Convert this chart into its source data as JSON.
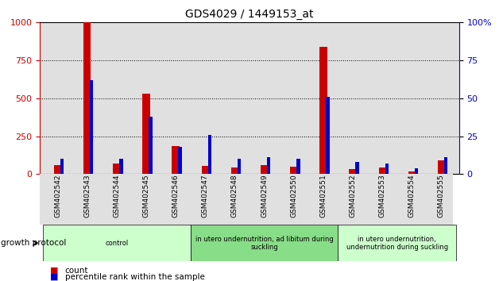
{
  "title": "GDS4029 / 1449153_at",
  "samples": [
    "GSM402542",
    "GSM402543",
    "GSM402544",
    "GSM402545",
    "GSM402546",
    "GSM402547",
    "GSM402548",
    "GSM402549",
    "GSM402550",
    "GSM402551",
    "GSM402552",
    "GSM402553",
    "GSM402554",
    "GSM402555"
  ],
  "counts": [
    60,
    1000,
    70,
    530,
    185,
    55,
    45,
    60,
    50,
    840,
    35,
    45,
    20,
    90
  ],
  "percentiles": [
    10,
    62,
    10,
    38,
    18,
    26,
    10,
    11,
    10,
    51,
    8,
    7,
    4,
    11
  ],
  "groups": [
    {
      "label": "control",
      "start": 0,
      "end": 5,
      "color": "#ccffcc"
    },
    {
      "label": "in utero undernutrition, ad libitum during\nsuckling",
      "start": 5,
      "end": 10,
      "color": "#88dd88"
    },
    {
      "label": "in utero undernutrition,\nundernutrition during suckling",
      "start": 10,
      "end": 14,
      "color": "#ccffcc"
    }
  ],
  "ylim_left": [
    0,
    1000
  ],
  "ylim_right": [
    0,
    100
  ],
  "yticks_left": [
    0,
    250,
    500,
    750,
    1000
  ],
  "yticks_right": [
    0,
    25,
    50,
    75,
    100
  ],
  "count_color": "#cc0000",
  "percentile_color": "#0000cc",
  "bg_color": "#e0e0e0",
  "growth_protocol_label": "growth protocol",
  "legend_count": "count",
  "legend_percentile": "percentile rank within the sample"
}
